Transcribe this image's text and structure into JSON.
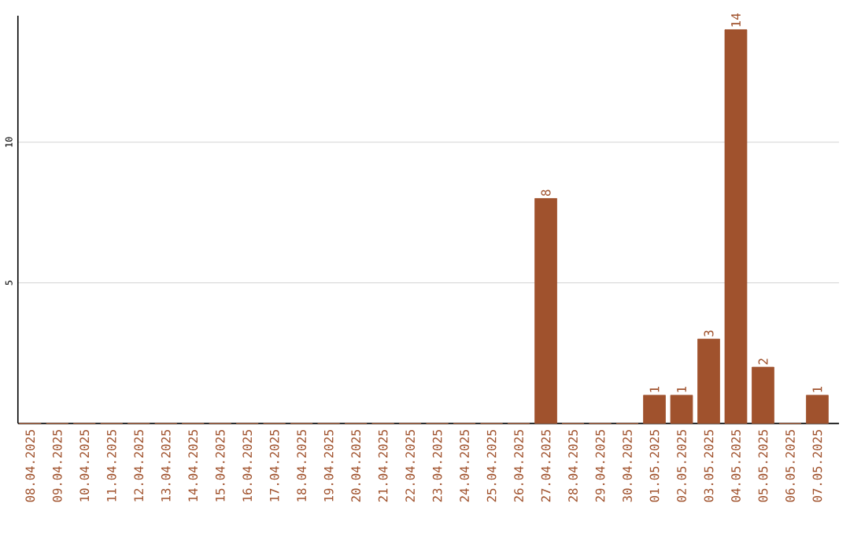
{
  "chart_data": {
    "type": "bar",
    "categories": [
      "08.04.2025",
      "09.04.2025",
      "10.04.2025",
      "11.04.2025",
      "12.04.2025",
      "13.04.2025",
      "14.04.2025",
      "15.04.2025",
      "16.04.2025",
      "17.04.2025",
      "18.04.2025",
      "19.04.2025",
      "20.04.2025",
      "21.04.2025",
      "22.04.2025",
      "23.04.2025",
      "24.04.2025",
      "25.04.2025",
      "26.04.2025",
      "27.04.2025",
      "28.04.2025",
      "29.04.2025",
      "30.04.2025",
      "01.05.2025",
      "02.05.2025",
      "03.05.2025",
      "04.05.2025",
      "05.05.2025",
      "06.05.2025",
      "07.05.2025"
    ],
    "values": [
      0,
      0,
      0,
      0,
      0,
      0,
      0,
      0,
      0,
      0,
      0,
      0,
      0,
      0,
      0,
      0,
      0,
      0,
      0,
      8,
      0,
      0,
      0,
      1,
      1,
      3,
      14,
      2,
      0,
      1
    ],
    "value_labels": [
      null,
      null,
      null,
      null,
      null,
      null,
      null,
      null,
      null,
      null,
      null,
      null,
      null,
      null,
      null,
      null,
      null,
      null,
      null,
      "8",
      null,
      null,
      null,
      "1",
      "1",
      "3",
      "14",
      "2",
      null,
      "1"
    ],
    "color": "#a0522d",
    "ylim": [
      0,
      14.5
    ],
    "yticks": [
      5,
      10
    ],
    "grid": "y"
  }
}
